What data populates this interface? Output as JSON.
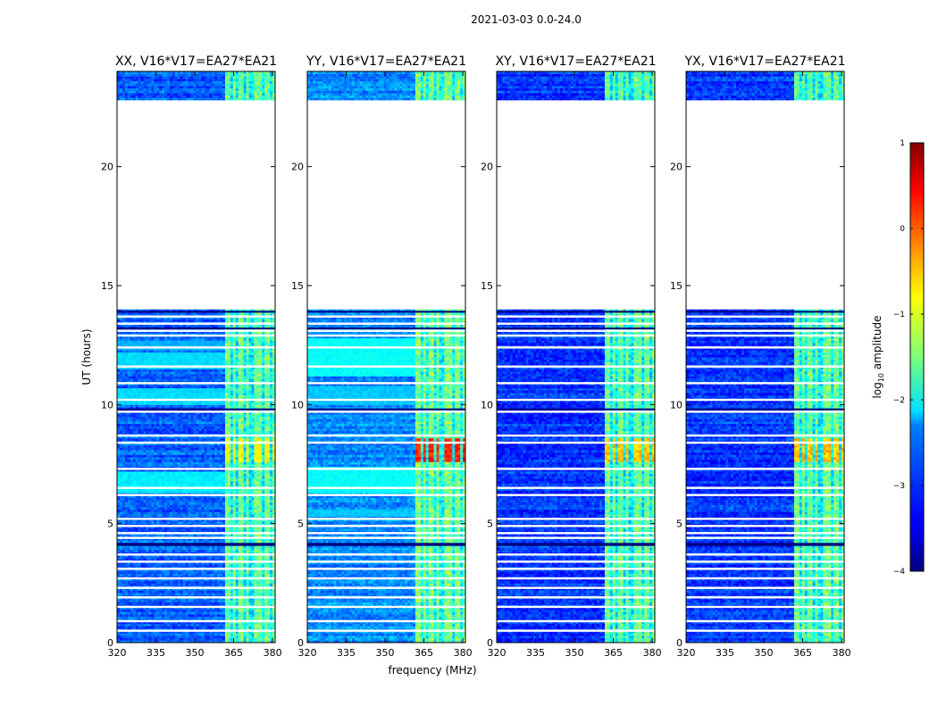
{
  "figure_title": "2021-03-03 0.0-24.0",
  "xlabel": "frequency (MHz)",
  "ylabel": "UT (hours)",
  "colorbar": {
    "label": "log10 amplitude",
    "label_base": "log",
    "label_sub": "10",
    "label_rest": " amplitude",
    "range": [
      -4,
      1
    ],
    "ticks": [
      1,
      0,
      -1,
      -2,
      -3,
      -4
    ],
    "tick_labels": [
      "1",
      "0",
      "−1",
      "−2",
      "−3",
      "−4"
    ],
    "colormap": "jet"
  },
  "chart_data": {
    "type": "heatmap",
    "xlim": [
      320,
      381
    ],
    "ylim": [
      0,
      24
    ],
    "x_ticks": [
      320,
      335,
      350,
      365,
      380
    ],
    "x_tick_labels": [
      "320",
      "335",
      "350",
      "365",
      "380"
    ],
    "y_ticks": [
      0,
      5,
      10,
      15,
      20
    ],
    "y_tick_labels": [
      "0",
      "5",
      "10",
      "15",
      "20"
    ],
    "panels": [
      {
        "title": "XX, V16*V17=EA27*EA21",
        "polarization": "XX",
        "baseline_level": -2.9,
        "band_level": -1.6,
        "rfi_peak_level": -0.9,
        "smooth_regions": [
          {
            "t0": 10.0,
            "t1": 10.7,
            "level": -2.3
          },
          {
            "t0": 11.5,
            "t1": 12.2,
            "level": -2.3
          },
          {
            "t0": 12.3,
            "t1": 12.7,
            "level": -2.5
          },
          {
            "t0": 6.3,
            "t1": 7.2,
            "level": -2.2
          }
        ]
      },
      {
        "title": "YY, V16*V17=EA27*EA21",
        "polarization": "YY",
        "baseline_level": -2.7,
        "band_level": -1.5,
        "rfi_peak_level": 0.2,
        "smooth_regions": [
          {
            "t0": 11.2,
            "t1": 12.8,
            "level": -2.1
          },
          {
            "t0": 10.0,
            "t1": 10.8,
            "level": -2.4
          },
          {
            "t0": 6.3,
            "t1": 7.4,
            "level": -2.1
          },
          {
            "t0": 5.3,
            "t1": 5.6,
            "level": -2.4
          }
        ]
      },
      {
        "title": "XY, V16*V17=EA27*EA21",
        "polarization": "XY",
        "baseline_level": -3.1,
        "band_level": -1.6,
        "rfi_peak_level": -0.6,
        "smooth_regions": []
      },
      {
        "title": "YX, V16*V17=EA27*EA21",
        "polarization": "YX",
        "baseline_level": -3.1,
        "band_level": -1.6,
        "rfi_peak_level": -0.6,
        "smooth_regions": []
      }
    ],
    "data_blocks_hours": [
      [
        0.0,
        14.0
      ],
      [
        22.8,
        24.0
      ]
    ],
    "empty_range_hours": [
      14.0,
      22.8
    ],
    "rfi_band_mhz": [
      362,
      381
    ],
    "rfi_strong_hours": [
      7.6,
      8.6
    ],
    "gap_lines_hours": [
      0.5,
      0.9,
      1.5,
      1.9,
      2.3,
      2.7,
      3.1,
      3.4,
      3.7,
      4.4,
      4.6,
      4.9,
      5.2,
      6.2,
      6.5,
      7.3,
      8.4,
      8.7,
      9.7,
      10.2,
      10.9,
      11.6,
      12.4,
      12.9,
      13.1,
      13.4,
      13.7
    ]
  }
}
